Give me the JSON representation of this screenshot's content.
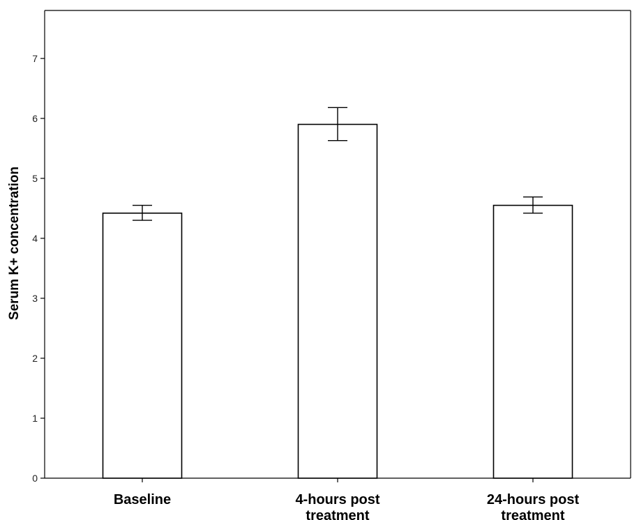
{
  "chart_data": {
    "type": "bar",
    "title": "",
    "xlabel": "",
    "ylabel": "Serum K+ concentration",
    "ylim": [
      0,
      7.8
    ],
    "yticks": [
      0,
      1,
      2,
      3,
      4,
      5,
      6,
      7
    ],
    "grid": false,
    "categories": [
      [
        "Baseline"
      ],
      [
        "4-hours post",
        "treatment"
      ],
      [
        "24-hours post",
        "treatment"
      ]
    ],
    "values": [
      4.42,
      5.9,
      4.55
    ],
    "error_bars": [
      {
        "low": 4.3,
        "high": 4.55
      },
      {
        "low": 5.63,
        "high": 6.18
      },
      {
        "low": 4.42,
        "high": 4.69
      }
    ],
    "bar_fill": "#ffffff",
    "bar_stroke": "#000000"
  }
}
